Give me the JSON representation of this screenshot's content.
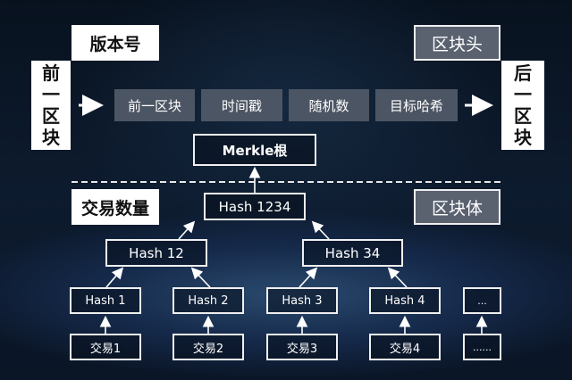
{
  "header": {
    "version": "版本号",
    "block_header": "区块头",
    "prev_block": [
      "前",
      "一",
      "区",
      "块"
    ],
    "next_block": [
      "后",
      "一",
      "区",
      "块"
    ]
  },
  "fields": [
    "前一区块",
    "时间戳",
    "随机数",
    "目标哈希"
  ],
  "merkle_root": "Merkle根",
  "body": {
    "tx_count": "交易数量",
    "block_body": "区块体"
  },
  "tree": {
    "root": "Hash 1234",
    "level1": [
      "Hash 12",
      "Hash 34"
    ],
    "leaves": [
      "Hash 1",
      "Hash 2",
      "Hash 3",
      "Hash 4",
      "..."
    ],
    "transactions": [
      "交易1",
      "交易2",
      "交易3",
      "交易4",
      "......"
    ]
  },
  "colors": {
    "background": "#0d1b2e",
    "field_gray": "#4c5563",
    "box_border": "#f0f0f0"
  }
}
